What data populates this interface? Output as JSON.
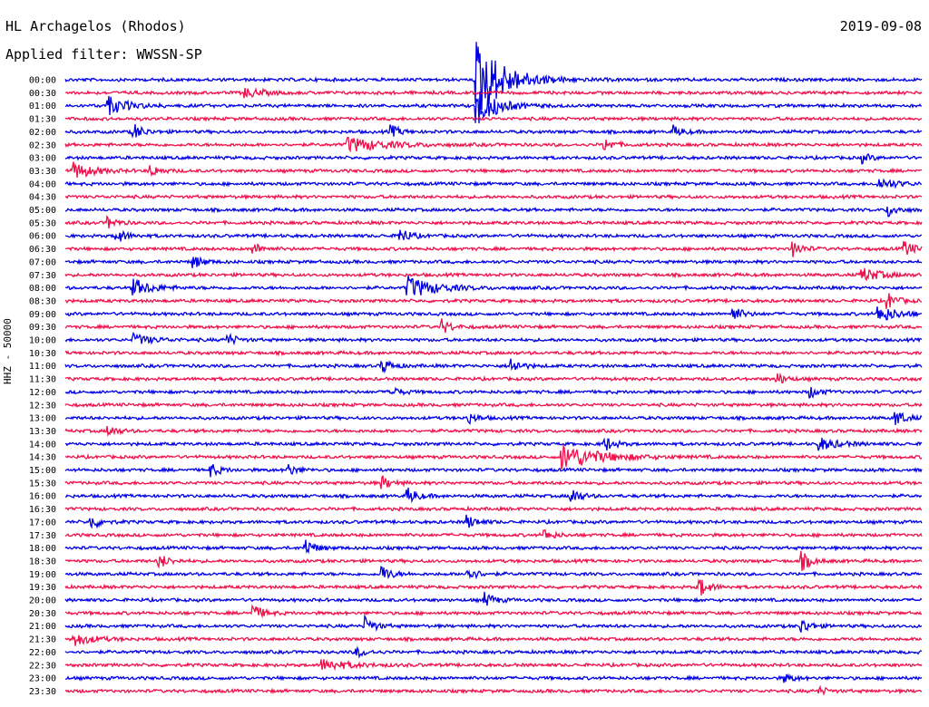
{
  "header": {
    "station": "HL Archagelos (Rhodos)",
    "date": "2019-09-08",
    "filter": "Applied filter: WWSSN-SP"
  },
  "chart_data": {
    "type": "line",
    "ylabel": "HHZ - 50000",
    "tick_labels": [
      "00:00",
      "00:30",
      "01:00",
      "01:30",
      "02:00",
      "02:30",
      "03:00",
      "03:30",
      "04:00",
      "04:30",
      "05:00",
      "05:30",
      "06:00",
      "06:30",
      "07:00",
      "07:30",
      "08:00",
      "08:30",
      "09:00",
      "09:30",
      "10:00",
      "10:30",
      "11:00",
      "11:30",
      "12:00",
      "12:30",
      "13:00",
      "13:30",
      "14:00",
      "14:30",
      "15:00",
      "15:30",
      "16:00",
      "16:30",
      "17:00",
      "17:30",
      "18:00",
      "18:30",
      "19:00",
      "19:30",
      "20:00",
      "20:30",
      "21:00",
      "21:30",
      "22:00",
      "22:30",
      "23:00",
      "23:30"
    ],
    "colors": [
      "#0000e6",
      "#f0104a"
    ],
    "grid": false,
    "events": [
      {
        "row": 0,
        "x": 0.48,
        "amp": 45,
        "dur": 0.03
      },
      {
        "row": 1,
        "x": 0.21,
        "amp": 5,
        "dur": 0.02
      },
      {
        "row": 2,
        "x": 0.05,
        "amp": 10,
        "dur": 0.02
      },
      {
        "row": 2,
        "x": 0.48,
        "amp": 25,
        "dur": 0.02
      },
      {
        "row": 4,
        "x": 0.08,
        "amp": 9,
        "dur": 0.01
      },
      {
        "row": 4,
        "x": 0.38,
        "amp": 7,
        "dur": 0.01
      },
      {
        "row": 4,
        "x": 0.71,
        "amp": 6,
        "dur": 0.01
      },
      {
        "row": 5,
        "x": 0.33,
        "amp": 8,
        "dur": 0.04
      },
      {
        "row": 5,
        "x": 0.63,
        "amp": 7,
        "dur": 0.01
      },
      {
        "row": 6,
        "x": 0.93,
        "amp": 5,
        "dur": 0.01
      },
      {
        "row": 7,
        "x": 0.01,
        "amp": 9,
        "dur": 0.02
      },
      {
        "row": 7,
        "x": 0.1,
        "amp": 6,
        "dur": 0.01
      },
      {
        "row": 8,
        "x": 0.95,
        "amp": 6,
        "dur": 0.02
      },
      {
        "row": 10,
        "x": 0.96,
        "amp": 8,
        "dur": 0.01
      },
      {
        "row": 11,
        "x": 0.05,
        "amp": 6,
        "dur": 0.01
      },
      {
        "row": 12,
        "x": 0.06,
        "amp": 8,
        "dur": 0.01
      },
      {
        "row": 12,
        "x": 0.39,
        "amp": 10,
        "dur": 0.01
      },
      {
        "row": 13,
        "x": 0.22,
        "amp": 6,
        "dur": 0.01
      },
      {
        "row": 13,
        "x": 0.85,
        "amp": 8,
        "dur": 0.01
      },
      {
        "row": 13,
        "x": 0.98,
        "amp": 9,
        "dur": 0.01
      },
      {
        "row": 14,
        "x": 0.15,
        "amp": 7,
        "dur": 0.01
      },
      {
        "row": 15,
        "x": 0.93,
        "amp": 8,
        "dur": 0.02
      },
      {
        "row": 16,
        "x": 0.08,
        "amp": 9,
        "dur": 0.02
      },
      {
        "row": 16,
        "x": 0.4,
        "amp": 12,
        "dur": 0.03
      },
      {
        "row": 17,
        "x": 0.96,
        "amp": 9,
        "dur": 0.01
      },
      {
        "row": 18,
        "x": 0.78,
        "amp": 8,
        "dur": 0.01
      },
      {
        "row": 18,
        "x": 0.95,
        "amp": 9,
        "dur": 0.02
      },
      {
        "row": 19,
        "x": 0.44,
        "amp": 8,
        "dur": 0.01
      },
      {
        "row": 20,
        "x": 0.08,
        "amp": 6,
        "dur": 0.02
      },
      {
        "row": 20,
        "x": 0.19,
        "amp": 6,
        "dur": 0.01
      },
      {
        "row": 22,
        "x": 0.37,
        "amp": 8,
        "dur": 0.01
      },
      {
        "row": 22,
        "x": 0.52,
        "amp": 9,
        "dur": 0.01
      },
      {
        "row": 23,
        "x": 0.83,
        "amp": 7,
        "dur": 0.01
      },
      {
        "row": 24,
        "x": 0.38,
        "amp": 6,
        "dur": 0.01
      },
      {
        "row": 24,
        "x": 0.87,
        "amp": 6,
        "dur": 0.01
      },
      {
        "row": 26,
        "x": 0.47,
        "amp": 6,
        "dur": 0.01
      },
      {
        "row": 26,
        "x": 0.97,
        "amp": 9,
        "dur": 0.01
      },
      {
        "row": 27,
        "x": 0.05,
        "amp": 6,
        "dur": 0.01
      },
      {
        "row": 28,
        "x": 0.63,
        "amp": 8,
        "dur": 0.01
      },
      {
        "row": 28,
        "x": 0.88,
        "amp": 7,
        "dur": 0.02
      },
      {
        "row": 29,
        "x": 0.58,
        "amp": 14,
        "dur": 0.04
      },
      {
        "row": 30,
        "x": 0.17,
        "amp": 7,
        "dur": 0.01
      },
      {
        "row": 30,
        "x": 0.26,
        "amp": 6,
        "dur": 0.01
      },
      {
        "row": 31,
        "x": 0.37,
        "amp": 7,
        "dur": 0.01
      },
      {
        "row": 32,
        "x": 0.4,
        "amp": 9,
        "dur": 0.01
      },
      {
        "row": 32,
        "x": 0.59,
        "amp": 10,
        "dur": 0.01
      },
      {
        "row": 34,
        "x": 0.03,
        "amp": 8,
        "dur": 0.01
      },
      {
        "row": 34,
        "x": 0.47,
        "amp": 7,
        "dur": 0.01
      },
      {
        "row": 35,
        "x": 0.56,
        "amp": 6,
        "dur": 0.01
      },
      {
        "row": 36,
        "x": 0.28,
        "amp": 10,
        "dur": 0.01
      },
      {
        "row": 37,
        "x": 0.11,
        "amp": 8,
        "dur": 0.01
      },
      {
        "row": 37,
        "x": 0.86,
        "amp": 10,
        "dur": 0.01
      },
      {
        "row": 38,
        "x": 0.37,
        "amp": 9,
        "dur": 0.01
      },
      {
        "row": 38,
        "x": 0.47,
        "amp": 8,
        "dur": 0.01
      },
      {
        "row": 39,
        "x": 0.74,
        "amp": 11,
        "dur": 0.01
      },
      {
        "row": 40,
        "x": 0.49,
        "amp": 8,
        "dur": 0.01
      },
      {
        "row": 41,
        "x": 0.22,
        "amp": 9,
        "dur": 0.01
      },
      {
        "row": 42,
        "x": 0.35,
        "amp": 10,
        "dur": 0.01
      },
      {
        "row": 42,
        "x": 0.86,
        "amp": 8,
        "dur": 0.01
      },
      {
        "row": 43,
        "x": 0.01,
        "amp": 7,
        "dur": 0.02
      },
      {
        "row": 44,
        "x": 0.34,
        "amp": 6,
        "dur": 0.01
      },
      {
        "row": 45,
        "x": 0.3,
        "amp": 6,
        "dur": 0.03
      },
      {
        "row": 46,
        "x": 0.84,
        "amp": 5,
        "dur": 0.01
      },
      {
        "row": 47,
        "x": 0.88,
        "amp": 4,
        "dur": 0.01
      }
    ]
  }
}
